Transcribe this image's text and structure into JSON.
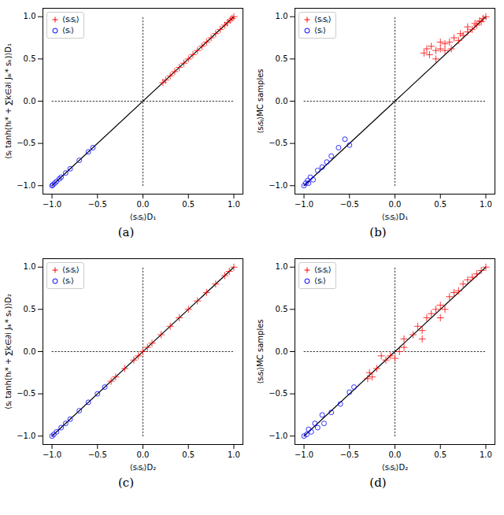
{
  "chart_data": [
    {
      "type": "scatter",
      "caption": "(a)",
      "x_label": "⟨sᵢsⱼ⟩D₁",
      "y_label": "⟨sⱼ tanh(hᵢ* + ∑k∈∂i Jᵢₖ* sₖ)⟩D₁",
      "xlim": [
        -1.1,
        1.1
      ],
      "ylim": [
        -1.1,
        1.1
      ],
      "xticks": [
        {
          "value": -1,
          "label": "−1.0"
        },
        {
          "value": -0.5,
          "label": "−0.5"
        },
        {
          "value": 0,
          "label": "0.0"
        },
        {
          "value": 0.5,
          "label": "0.5"
        },
        {
          "value": 1,
          "label": "1.0"
        }
      ],
      "yticks": [
        {
          "value": -1,
          "label": "−1.0"
        },
        {
          "value": -0.5,
          "label": "−0.5"
        },
        {
          "value": 0,
          "label": "0.0"
        },
        {
          "value": 0.5,
          "label": "0.5"
        },
        {
          "value": 1,
          "label": "1.0"
        }
      ],
      "legend": "upper left",
      "series": [
        {
          "type": "line",
          "color": "black",
          "line_style": "dotted",
          "x": [
            -1,
            1
          ],
          "values": [
            0,
            0
          ]
        },
        {
          "type": "line",
          "color": "black",
          "line_style": "dotted",
          "x": [
            0,
            0
          ],
          "values": [
            -1,
            1
          ]
        },
        {
          "type": "line",
          "color": "black",
          "line_style": "solid",
          "x": [
            -1,
            1
          ],
          "values": [
            -1,
            1
          ]
        },
        {
          "name": "⟨sᵢsⱼ⟩",
          "type": "scatter",
          "color": "red",
          "marker": "+",
          "x": [
            0.22,
            0.25,
            0.3,
            0.35,
            0.4,
            0.45,
            0.5,
            0.55,
            0.6,
            0.65,
            0.7,
            0.75,
            0.8,
            0.85,
            0.9,
            0.93,
            0.96,
            0.98,
            1.0
          ],
          "values": [
            0.22,
            0.25,
            0.3,
            0.35,
            0.4,
            0.45,
            0.5,
            0.55,
            0.6,
            0.65,
            0.7,
            0.75,
            0.8,
            0.85,
            0.9,
            0.93,
            0.96,
            0.98,
            1.0
          ]
        },
        {
          "name": "⟨sᵢ⟩",
          "type": "scatter",
          "color": "blue",
          "marker": "o",
          "x": [
            -1.0,
            -0.99,
            -0.97,
            -0.95,
            -0.92,
            -0.9,
            -0.85,
            -0.8,
            -0.7,
            -0.6,
            -0.55
          ],
          "values": [
            -1.0,
            -0.99,
            -0.97,
            -0.95,
            -0.92,
            -0.9,
            -0.85,
            -0.8,
            -0.7,
            -0.6,
            -0.55
          ]
        }
      ]
    },
    {
      "type": "scatter",
      "caption": "(b)",
      "x_label": "⟨sᵢsⱼ⟩D₁",
      "y_label": "⟨sᵢsⱼ⟩MC samples",
      "xlim": [
        -1.1,
        1.1
      ],
      "ylim": [
        -1.1,
        1.1
      ],
      "xticks": [
        {
          "value": -1,
          "label": "−1.0"
        },
        {
          "value": -0.5,
          "label": "−0.5"
        },
        {
          "value": 0,
          "label": "0.0"
        },
        {
          "value": 0.5,
          "label": "0.5"
        },
        {
          "value": 1,
          "label": "1.0"
        }
      ],
      "yticks": [
        {
          "value": -1,
          "label": "−1.0"
        },
        {
          "value": -0.5,
          "label": "−0.5"
        },
        {
          "value": 0,
          "label": "0.0"
        },
        {
          "value": 0.5,
          "label": "0.5"
        },
        {
          "value": 1,
          "label": "1.0"
        }
      ],
      "legend": "upper left",
      "series": [
        {
          "type": "line",
          "color": "black",
          "line_style": "dotted",
          "x": [
            -1,
            1
          ],
          "values": [
            0,
            0
          ]
        },
        {
          "type": "line",
          "color": "black",
          "line_style": "dotted",
          "x": [
            0,
            0
          ],
          "values": [
            -1,
            1
          ]
        },
        {
          "type": "line",
          "color": "black",
          "line_style": "solid",
          "x": [
            -1,
            1
          ],
          "values": [
            -1,
            1
          ]
        },
        {
          "name": "⟨sᵢsⱼ⟩",
          "type": "scatter",
          "color": "red",
          "marker": "+",
          "x": [
            0.32,
            0.35,
            0.38,
            0.4,
            0.45,
            0.5,
            0.5,
            0.55,
            0.6,
            0.62,
            0.65,
            0.7,
            0.72,
            0.75,
            0.8,
            0.8,
            0.85,
            0.88,
            0.9,
            0.93,
            0.95,
            0.97,
            1.0,
            0.45,
            0.55
          ],
          "values": [
            0.57,
            0.62,
            0.55,
            0.65,
            0.6,
            0.62,
            0.7,
            0.6,
            0.7,
            0.62,
            0.75,
            0.72,
            0.8,
            0.78,
            0.82,
            0.88,
            0.85,
            0.92,
            0.9,
            0.95,
            0.94,
            0.98,
            1.0,
            0.5,
            0.68
          ]
        },
        {
          "name": "⟨sᵢ⟩",
          "type": "scatter",
          "color": "blue",
          "marker": "o",
          "x": [
            -1.0,
            -0.98,
            -0.96,
            -0.95,
            -0.93,
            -0.9,
            -0.85,
            -0.8,
            -0.75,
            -0.7,
            -0.62,
            -0.55,
            -0.5
          ],
          "values": [
            -1.0,
            -0.97,
            -0.94,
            -0.97,
            -0.9,
            -0.93,
            -0.82,
            -0.78,
            -0.72,
            -0.65,
            -0.55,
            -0.45,
            -0.52
          ]
        }
      ]
    },
    {
      "type": "scatter",
      "caption": "(c)",
      "x_label": "⟨sᵢsⱼ⟩D₂",
      "y_label": "⟨sⱼ tanh(hᵢ* + ∑k∈∂i Jᵢₖ* sₖ)⟩D₂",
      "xlim": [
        -1.1,
        1.1
      ],
      "ylim": [
        -1.1,
        1.1
      ],
      "xticks": [
        {
          "value": -1,
          "label": "−1.0"
        },
        {
          "value": -0.5,
          "label": "−0.5"
        },
        {
          "value": 0,
          "label": "0.0"
        },
        {
          "value": 0.5,
          "label": "0.5"
        },
        {
          "value": 1,
          "label": "1.0"
        }
      ],
      "yticks": [
        {
          "value": -1,
          "label": "−1.0"
        },
        {
          "value": -0.5,
          "label": "−0.5"
        },
        {
          "value": 0,
          "label": "0.0"
        },
        {
          "value": 0.5,
          "label": "0.5"
        },
        {
          "value": 1,
          "label": "1.0"
        }
      ],
      "legend": "upper left",
      "series": [
        {
          "type": "line",
          "color": "black",
          "line_style": "dotted",
          "x": [
            -1,
            1
          ],
          "values": [
            0,
            0
          ]
        },
        {
          "type": "line",
          "color": "black",
          "line_style": "dotted",
          "x": [
            0,
            0
          ],
          "values": [
            -1,
            1
          ]
        },
        {
          "type": "line",
          "color": "black",
          "line_style": "solid",
          "x": [
            -1,
            1
          ],
          "values": [
            -1,
            1
          ]
        },
        {
          "name": "⟨sᵢsⱼ⟩",
          "type": "scatter",
          "color": "red",
          "marker": "+",
          "x": [
            -0.35,
            -0.3,
            -0.2,
            -0.1,
            -0.05,
            0,
            0.05,
            0.1,
            0.2,
            0.3,
            0.4,
            0.5,
            0.6,
            0.7,
            0.8,
            0.9,
            0.95,
            1.0
          ],
          "values": [
            -0.35,
            -0.3,
            -0.2,
            -0.1,
            -0.05,
            0,
            0.05,
            0.1,
            0.2,
            0.3,
            0.4,
            0.5,
            0.6,
            0.7,
            0.8,
            0.9,
            0.95,
            1.0
          ]
        },
        {
          "name": "⟨sᵢ⟩",
          "type": "scatter",
          "color": "blue",
          "marker": "o",
          "x": [
            -1.0,
            -0.98,
            -0.95,
            -0.9,
            -0.85,
            -0.8,
            -0.7,
            -0.6,
            -0.5,
            -0.42
          ],
          "values": [
            -1.0,
            -0.98,
            -0.95,
            -0.9,
            -0.85,
            -0.8,
            -0.7,
            -0.6,
            -0.5,
            -0.42
          ]
        }
      ]
    },
    {
      "type": "scatter",
      "caption": "(d)",
      "x_label": "⟨sᵢsⱼ⟩D₂",
      "y_label": "⟨sᵢsⱼ⟩MC samples",
      "xlim": [
        -1.1,
        1.1
      ],
      "ylim": [
        -1.1,
        1.1
      ],
      "xticks": [
        {
          "value": -1,
          "label": "−1.0"
        },
        {
          "value": -0.5,
          "label": "−0.5"
        },
        {
          "value": 0,
          "label": "0.0"
        },
        {
          "value": 0.5,
          "label": "0.5"
        },
        {
          "value": 1,
          "label": "1.0"
        }
      ],
      "yticks": [
        {
          "value": -1,
          "label": "−1.0"
        },
        {
          "value": -0.5,
          "label": "−0.5"
        },
        {
          "value": 0,
          "label": "0.0"
        },
        {
          "value": 0.5,
          "label": "0.5"
        },
        {
          "value": 1,
          "label": "1.0"
        }
      ],
      "legend": "upper left",
      "series": [
        {
          "type": "line",
          "color": "black",
          "line_style": "dotted",
          "x": [
            -1,
            1
          ],
          "values": [
            0,
            0
          ]
        },
        {
          "type": "line",
          "color": "black",
          "line_style": "dotted",
          "x": [
            0,
            0
          ],
          "values": [
            -1,
            1
          ]
        },
        {
          "type": "line",
          "color": "black",
          "line_style": "solid",
          "x": [
            -1,
            1
          ],
          "values": [
            -1,
            1
          ]
        },
        {
          "name": "⟨sᵢsⱼ⟩",
          "type": "scatter",
          "color": "red",
          "marker": "+",
          "x": [
            -0.3,
            -0.28,
            -0.25,
            -0.2,
            -0.15,
            -0.1,
            -0.05,
            0,
            0.05,
            0.1,
            0.1,
            0.2,
            0.25,
            0.3,
            0.35,
            0.4,
            0.45,
            0.5,
            0.55,
            0.6,
            0.65,
            0.7,
            0.75,
            0.8,
            0.85,
            0.9,
            0.95,
            1.0,
            0.5,
            0.3
          ],
          "values": [
            -0.32,
            -0.25,
            -0.3,
            -0.2,
            -0.05,
            -0.1,
            -0.05,
            -0.08,
            0,
            0.05,
            0.15,
            0.2,
            0.3,
            0.25,
            0.4,
            0.45,
            0.5,
            0.55,
            0.5,
            0.65,
            0.7,
            0.72,
            0.8,
            0.85,
            0.88,
            0.92,
            0.96,
            1.0,
            0.4,
            0.15
          ]
        },
        {
          "name": "⟨sᵢ⟩",
          "type": "scatter",
          "color": "blue",
          "marker": "o",
          "x": [
            -1.0,
            -0.97,
            -0.95,
            -0.92,
            -0.88,
            -0.85,
            -0.8,
            -0.78,
            -0.7,
            -0.6,
            -0.5,
            -0.45
          ],
          "values": [
            -1.0,
            -0.98,
            -0.92,
            -0.95,
            -0.85,
            -0.9,
            -0.75,
            -0.85,
            -0.72,
            -0.62,
            -0.48,
            -0.42
          ]
        }
      ]
    }
  ]
}
